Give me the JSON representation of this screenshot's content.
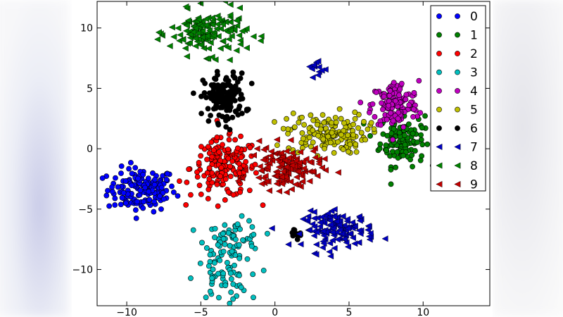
{
  "chart_data": {
    "type": "scatter",
    "title": "",
    "xlabel": "",
    "ylabel": "",
    "xlim": [
      -12,
      14.5
    ],
    "ylim": [
      -13,
      12.2
    ],
    "x_ticks": [
      -10,
      -5,
      0,
      5,
      10
    ],
    "y_ticks": [
      10,
      5,
      0,
      -5,
      -10
    ],
    "x_tick_labels": [
      "−10",
      "−5",
      "0",
      "5",
      "10"
    ],
    "y_tick_labels": [
      "10",
      "5",
      "0",
      "−5",
      "−10"
    ],
    "grid": false,
    "legend_position": "top-right",
    "series": [
      {
        "name": "0",
        "marker": "circle",
        "color": "#0000ff",
        "clusters": [
          {
            "cx": -9.0,
            "cy": -3.4,
            "sx": 1.15,
            "sy": 0.9,
            "n": 150
          }
        ]
      },
      {
        "name": "1",
        "marker": "circle",
        "color": "#008000",
        "clusters": [
          {
            "cx": 8.6,
            "cy": 0.8,
            "sx": 0.75,
            "sy": 1.1,
            "n": 130
          }
        ]
      },
      {
        "name": "2",
        "marker": "circle",
        "color": "#ff0000",
        "clusters": [
          {
            "cx": -3.4,
            "cy": -1.6,
            "sx": 1.15,
            "sy": 1.2,
            "n": 170
          }
        ]
      },
      {
        "name": "3",
        "marker": "circle",
        "color": "#00bfbf",
        "clusters": [
          {
            "cx": -2.8,
            "cy": -7.6,
            "sx": 0.95,
            "sy": 0.85,
            "n": 70
          },
          {
            "cx": -3.6,
            "cy": -10.8,
            "sx": 0.9,
            "sy": 0.9,
            "n": 50
          }
        ]
      },
      {
        "name": "4",
        "marker": "circle",
        "color": "#bf00bf",
        "clusters": [
          {
            "cx": 8.1,
            "cy": 3.6,
            "sx": 0.8,
            "sy": 1.0,
            "n": 130
          }
        ]
      },
      {
        "name": "5",
        "marker": "circle",
        "color": "#bfbf00",
        "clusters": [
          {
            "cx": 3.5,
            "cy": 1.3,
            "sx": 1.35,
            "sy": 0.85,
            "n": 150
          }
        ]
      },
      {
        "name": "6",
        "marker": "circle",
        "color": "#000000",
        "clusters": [
          {
            "cx": -3.4,
            "cy": 4.2,
            "sx": 0.7,
            "sy": 1.0,
            "n": 140
          },
          {
            "cx": 1.4,
            "cy": -6.9,
            "sx": 0.35,
            "sy": 0.3,
            "n": 12
          }
        ]
      },
      {
        "name": "7",
        "marker": "triangle-left",
        "color": "#0000bf",
        "clusters": [
          {
            "cx": 4.3,
            "cy": -6.7,
            "sx": 1.2,
            "sy": 0.7,
            "n": 130
          },
          {
            "cx": 2.7,
            "cy": 6.6,
            "sx": 0.35,
            "sy": 0.6,
            "n": 12
          }
        ]
      },
      {
        "name": "8",
        "marker": "triangle-left",
        "color": "#008000",
        "clusters": [
          {
            "cx": -4.5,
            "cy": 9.6,
            "sx": 1.3,
            "sy": 0.9,
            "n": 150
          }
        ]
      },
      {
        "name": "9",
        "marker": "triangle-left",
        "color": "#bf0000",
        "clusters": [
          {
            "cx": 0.7,
            "cy": -1.6,
            "sx": 1.2,
            "sy": 0.9,
            "n": 140
          }
        ]
      }
    ]
  }
}
